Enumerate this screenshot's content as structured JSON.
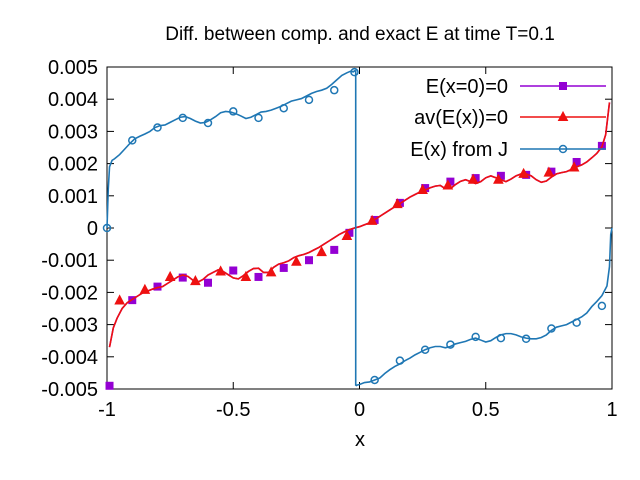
{
  "chart_data": {
    "type": "line",
    "title": "Diff. between comp. and exact E at time T=0.1",
    "xlabel": "x",
    "ylabel": "",
    "xlim": [
      -1,
      1
    ],
    "ylim": [
      -0.005,
      0.005
    ],
    "xticks": [
      "-1",
      "-0.5",
      "0",
      "0.5",
      "1"
    ],
    "yticks": [
      "-0.005",
      "-0.004",
      "-0.003",
      "-0.002",
      "-0.001",
      "0",
      "0.001",
      "0.002",
      "0.003",
      "0.004",
      "0.005"
    ],
    "grid": false,
    "legend_position": "top-right",
    "series": [
      {
        "name": "E(x=0)=0",
        "color": "#9400d3",
        "marker": "square",
        "line_x": [
          -0.99,
          -0.975,
          -0.96,
          -0.94,
          -0.92,
          -0.9,
          -0.88,
          -0.86,
          -0.84,
          -0.82,
          -0.8,
          -0.78,
          -0.76,
          -0.74,
          -0.72,
          -0.7,
          -0.68,
          -0.66,
          -0.64,
          -0.62,
          -0.6,
          -0.58,
          -0.56,
          -0.54,
          -0.52,
          -0.5,
          -0.48,
          -0.46,
          -0.44,
          -0.42,
          -0.4,
          -0.38,
          -0.36,
          -0.34,
          -0.32,
          -0.3,
          -0.28,
          -0.26,
          -0.24,
          -0.22,
          -0.2,
          -0.18,
          -0.16,
          -0.14,
          -0.12,
          -0.1,
          -0.08,
          -0.06,
          -0.04,
          -0.02,
          0,
          0.02,
          0.04,
          0.06,
          0.08,
          0.1,
          0.12,
          0.14,
          0.16,
          0.18,
          0.2,
          0.22,
          0.24,
          0.26,
          0.28,
          0.3,
          0.32,
          0.34,
          0.36,
          0.38,
          0.4,
          0.42,
          0.44,
          0.46,
          0.48,
          0.5,
          0.52,
          0.54,
          0.56,
          0.58,
          0.6,
          0.62,
          0.64,
          0.66,
          0.68,
          0.7,
          0.72,
          0.74,
          0.76,
          0.78,
          0.8,
          0.82,
          0.84,
          0.86,
          0.88,
          0.9,
          0.92,
          0.94,
          0.96,
          0.975,
          0.99
        ],
        "line_y": [
          -0.0037,
          -0.0031,
          -0.0028,
          -0.0025,
          -0.00232,
          -0.00222,
          -0.00212,
          -0.00202,
          -0.00196,
          -0.0019,
          -0.00185,
          -0.00182,
          -0.00172,
          -0.00162,
          -0.00152,
          -0.00146,
          -0.0015,
          -0.00162,
          -0.00168,
          -0.0016,
          -0.00146,
          -0.00138,
          -0.0013,
          -0.00135,
          -0.00145,
          -0.00155,
          -0.00158,
          -0.00148,
          -0.00135,
          -0.00126,
          -0.00125,
          -0.00138,
          -0.00138,
          -0.00122,
          -0.00112,
          -0.00108,
          -0.00102,
          -0.00092,
          -0.00086,
          -0.00082,
          -0.00076,
          -0.00068,
          -0.0006,
          -0.0005,
          -0.0004,
          -0.0003,
          -0.0002,
          -0.00012,
          -5e-05,
          0.0,
          4e-05,
          0.0001,
          0.00016,
          0.00026,
          0.00036,
          0.00046,
          0.00056,
          0.00066,
          0.00076,
          0.00086,
          0.00096,
          0.00104,
          0.00112,
          0.00118,
          0.00125,
          0.0013,
          0.00132,
          0.00122,
          0.00122,
          0.00135,
          0.00145,
          0.0015,
          0.00144,
          0.00138,
          0.00144,
          0.00156,
          0.00162,
          0.00156,
          0.0015,
          0.00144,
          0.00152,
          0.00162,
          0.00168,
          0.00168,
          0.00162,
          0.0015,
          0.00142,
          0.00146,
          0.00158,
          0.00168,
          0.00172,
          0.00175,
          0.00182,
          0.0019,
          0.00196,
          0.00205,
          0.00218,
          0.00232,
          0.00252,
          0.0029,
          0.0039
        ],
        "marker_x": [
          -0.99,
          -0.9,
          -0.8,
          -0.7,
          -0.6,
          -0.5,
          -0.4,
          -0.3,
          -0.2,
          -0.1,
          -0.04,
          0.06,
          0.16,
          0.26,
          0.36,
          0.46,
          0.56,
          0.66,
          0.76,
          0.86,
          0.96
        ],
        "marker_y": [
          -0.0049,
          -0.00224,
          -0.00182,
          -0.00154,
          -0.0017,
          -0.00132,
          -0.00152,
          -0.00124,
          -0.001,
          -0.00068,
          -0.00015,
          0.00025,
          0.00078,
          0.00124,
          0.00144,
          0.00155,
          0.00162,
          0.00165,
          0.00175,
          0.00205,
          0.00255
        ]
      },
      {
        "name": "av(E(x))=0",
        "color": "#ee1111",
        "marker": "triangle",
        "line_x": [
          -0.99,
          -0.975,
          -0.96,
          -0.94,
          -0.92,
          -0.9,
          -0.88,
          -0.86,
          -0.84,
          -0.82,
          -0.8,
          -0.78,
          -0.76,
          -0.74,
          -0.72,
          -0.7,
          -0.68,
          -0.66,
          -0.64,
          -0.62,
          -0.6,
          -0.58,
          -0.56,
          -0.54,
          -0.52,
          -0.5,
          -0.48,
          -0.46,
          -0.44,
          -0.42,
          -0.4,
          -0.38,
          -0.36,
          -0.34,
          -0.32,
          -0.3,
          -0.28,
          -0.26,
          -0.24,
          -0.22,
          -0.2,
          -0.18,
          -0.16,
          -0.14,
          -0.12,
          -0.1,
          -0.08,
          -0.06,
          -0.04,
          -0.02,
          0,
          0.02,
          0.04,
          0.06,
          0.08,
          0.1,
          0.12,
          0.14,
          0.16,
          0.18,
          0.2,
          0.22,
          0.24,
          0.26,
          0.28,
          0.3,
          0.32,
          0.34,
          0.36,
          0.38,
          0.4,
          0.42,
          0.44,
          0.46,
          0.48,
          0.5,
          0.52,
          0.54,
          0.56,
          0.58,
          0.6,
          0.62,
          0.64,
          0.66,
          0.68,
          0.7,
          0.72,
          0.74,
          0.76,
          0.78,
          0.8,
          0.82,
          0.84,
          0.86,
          0.88,
          0.9,
          0.92,
          0.94,
          0.96,
          0.975,
          0.99
        ],
        "line_y": [
          -0.0037,
          -0.0031,
          -0.0028,
          -0.0025,
          -0.00232,
          -0.00222,
          -0.00212,
          -0.00202,
          -0.00196,
          -0.0019,
          -0.00185,
          -0.00182,
          -0.00172,
          -0.00162,
          -0.00152,
          -0.00146,
          -0.0015,
          -0.00162,
          -0.00168,
          -0.0016,
          -0.00146,
          -0.00138,
          -0.0013,
          -0.00135,
          -0.00145,
          -0.00155,
          -0.00158,
          -0.00148,
          -0.00135,
          -0.00126,
          -0.00125,
          -0.00138,
          -0.00138,
          -0.00122,
          -0.00112,
          -0.00108,
          -0.00102,
          -0.00092,
          -0.00086,
          -0.00082,
          -0.00076,
          -0.00068,
          -0.0006,
          -0.0005,
          -0.0004,
          -0.0003,
          -0.0002,
          -0.00012,
          -5e-05,
          0.0,
          4e-05,
          0.0001,
          0.00016,
          0.00026,
          0.00036,
          0.00046,
          0.00056,
          0.00066,
          0.00076,
          0.00086,
          0.00096,
          0.00104,
          0.00112,
          0.00118,
          0.00125,
          0.0013,
          0.00132,
          0.00122,
          0.00122,
          0.00135,
          0.00145,
          0.0015,
          0.00144,
          0.00138,
          0.00144,
          0.00156,
          0.00162,
          0.00156,
          0.0015,
          0.00144,
          0.00152,
          0.00162,
          0.00168,
          0.00168,
          0.00162,
          0.0015,
          0.00142,
          0.00146,
          0.00158,
          0.00168,
          0.00172,
          0.00175,
          0.00182,
          0.0019,
          0.00196,
          0.00205,
          0.00218,
          0.00232,
          0.00252,
          0.0029,
          0.0039
        ],
        "marker_x": [
          -0.95,
          -0.85,
          -0.75,
          -0.65,
          -0.55,
          -0.45,
          -0.35,
          -0.25,
          -0.15,
          -0.05,
          0.05,
          0.15,
          0.25,
          0.35,
          0.45,
          0.55,
          0.65,
          0.75,
          0.85
        ],
        "marker_y": [
          -0.00225,
          -0.00192,
          -0.00152,
          -0.00165,
          -0.00135,
          -0.00152,
          -0.00138,
          -0.00105,
          -0.00075,
          -0.00025,
          0.00022,
          0.00074,
          0.00118,
          0.00132,
          0.0015,
          0.0015,
          0.00168,
          0.00172,
          0.00188
        ]
      },
      {
        "name": "E(x) from J",
        "color": "#1f77b4",
        "marker": "circle",
        "line_x": [
          -1.0,
          -0.995,
          -0.99,
          -0.98,
          -0.97,
          -0.95,
          -0.93,
          -0.91,
          -0.89,
          -0.87,
          -0.85,
          -0.83,
          -0.81,
          -0.79,
          -0.77,
          -0.75,
          -0.73,
          -0.71,
          -0.69,
          -0.67,
          -0.65,
          -0.63,
          -0.61,
          -0.59,
          -0.57,
          -0.55,
          -0.53,
          -0.51,
          -0.49,
          -0.47,
          -0.45,
          -0.43,
          -0.41,
          -0.39,
          -0.37,
          -0.35,
          -0.33,
          -0.31,
          -0.29,
          -0.27,
          -0.25,
          -0.23,
          -0.21,
          -0.19,
          -0.17,
          -0.15,
          -0.13,
          -0.11,
          -0.09,
          -0.07,
          -0.05,
          -0.035,
          -0.025,
          -0.015
        ],
        "line_y": [
          0.0,
          0.0012,
          0.0019,
          0.0021,
          0.00215,
          0.00228,
          0.00245,
          0.00262,
          0.00277,
          0.00285,
          0.00292,
          0.003,
          0.00312,
          0.00318,
          0.0032,
          0.00328,
          0.00336,
          0.00344,
          0.00346,
          0.0034,
          0.00332,
          0.00326,
          0.00328,
          0.00336,
          0.00346,
          0.00358,
          0.00362,
          0.0036,
          0.00355,
          0.00348,
          0.0034,
          0.00344,
          0.00352,
          0.0036,
          0.00362,
          0.00366,
          0.00372,
          0.00378,
          0.00386,
          0.00394,
          0.00398,
          0.00402,
          0.0041,
          0.00418,
          0.00424,
          0.00428,
          0.00434,
          0.00446,
          0.0046,
          0.00474,
          0.00482,
          0.00487,
          0.00485,
          0.0049
        ],
        "line2_x": [
          -0.015,
          -0.01,
          0.0,
          0.02,
          0.04,
          0.06,
          0.08,
          0.1,
          0.12,
          0.14,
          0.16,
          0.18,
          0.2,
          0.22,
          0.24,
          0.26,
          0.28,
          0.3,
          0.32,
          0.34,
          0.36,
          0.38,
          0.4,
          0.42,
          0.44,
          0.46,
          0.48,
          0.5,
          0.52,
          0.54,
          0.56,
          0.58,
          0.6,
          0.62,
          0.64,
          0.66,
          0.68,
          0.7,
          0.72,
          0.74,
          0.76,
          0.78,
          0.8,
          0.82,
          0.84,
          0.86,
          0.88,
          0.9,
          0.92,
          0.94,
          0.96,
          0.98,
          0.99,
          0.995,
          1.0
        ],
        "line2_y": [
          -0.0049,
          -0.00488,
          -0.00486,
          -0.0048,
          -0.00478,
          -0.00472,
          -0.00466,
          -0.00452,
          -0.0044,
          -0.0043,
          -0.00422,
          -0.00412,
          -0.00404,
          -0.00394,
          -0.00386,
          -0.00378,
          -0.00372,
          -0.00368,
          -0.00368,
          -0.00372,
          -0.00368,
          -0.0036,
          -0.00356,
          -0.00352,
          -0.00346,
          -0.00342,
          -0.00348,
          -0.00354,
          -0.0035,
          -0.0034,
          -0.00332,
          -0.00328,
          -0.00328,
          -0.00332,
          -0.00338,
          -0.00342,
          -0.00344,
          -0.00344,
          -0.0034,
          -0.00332,
          -0.00318,
          -0.00308,
          -0.00304,
          -0.003,
          -0.00292,
          -0.00284,
          -0.00276,
          -0.00264,
          -0.00244,
          -0.00228,
          -0.0021,
          -0.0018,
          -0.0012,
          -0.0002,
          0.0
        ],
        "marker_x": [
          -1.0,
          -0.9,
          -0.8,
          -0.7,
          -0.6,
          -0.5,
          -0.4,
          -0.3,
          -0.2,
          -0.1,
          -0.02,
          0.06,
          0.16,
          0.26,
          0.36,
          0.46,
          0.56,
          0.66,
          0.76,
          0.86,
          0.96
        ],
        "marker_y": [
          0.0,
          0.00272,
          0.00312,
          0.00342,
          0.00326,
          0.00362,
          0.00342,
          0.00372,
          0.00398,
          0.00428,
          0.00484,
          -0.00472,
          -0.00412,
          -0.00378,
          -0.00362,
          -0.00338,
          -0.00342,
          -0.00344,
          -0.00312,
          -0.00294,
          -0.00242
        ]
      }
    ]
  }
}
